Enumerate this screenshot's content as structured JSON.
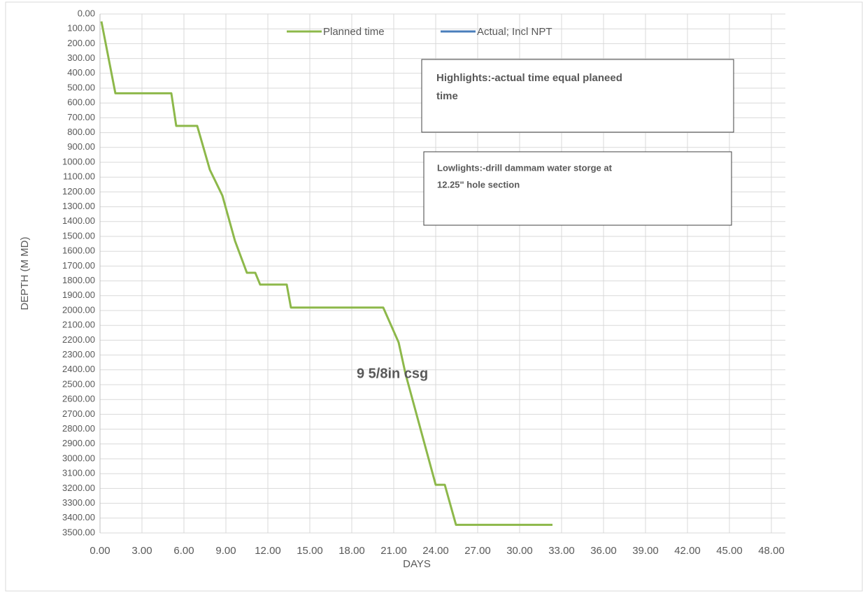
{
  "chart_data": {
    "type": "line",
    "x_label": "DAYS",
    "y_label": "DEPTH (M MD)",
    "x": [
      0.1,
      1.1,
      5.1,
      5.45,
      6.95,
      7.85,
      8.75,
      9.65,
      10.5,
      11.1,
      11.45,
      13.35,
      13.65,
      20.25,
      21.35,
      21.85,
      24.0,
      24.65,
      25.45,
      32.35
    ],
    "series": [
      {
        "name": "Planned time",
        "color": "#8db84a",
        "values": [
          50,
          535,
          535,
          755,
          755,
          1050,
          1225,
          1530,
          1745,
          1745,
          1825,
          1825,
          1980,
          1980,
          2215,
          2430,
          3175,
          3175,
          3445,
          3445
        ]
      },
      {
        "name": "Actual; Incl NPT",
        "color": "#4a7ebb",
        "values": [
          null,
          null,
          null,
          null,
          null,
          null,
          null,
          null,
          null,
          null,
          null,
          null,
          null,
          null,
          null,
          null,
          null,
          null,
          null,
          null
        ]
      }
    ],
    "xlim": [
      0,
      49
    ],
    "ylim": [
      0,
      3500
    ],
    "y_reversed": true,
    "grid": true,
    "legend": "top",
    "xticks": [
      {
        "value": 0,
        "label": "0.00"
      },
      {
        "value": 3,
        "label": "3.00"
      },
      {
        "value": 6,
        "label": "6.00"
      },
      {
        "value": 9,
        "label": "9.00"
      },
      {
        "value": 12,
        "label": "12.00"
      },
      {
        "value": 15,
        "label": "15.00"
      },
      {
        "value": 18,
        "label": "18.00"
      },
      {
        "value": 21,
        "label": "21.00"
      },
      {
        "value": 24,
        "label": "24.00"
      },
      {
        "value": 27,
        "label": "27.00"
      },
      {
        "value": 30,
        "label": "30.00"
      },
      {
        "value": 33,
        "label": "33.00"
      },
      {
        "value": 36,
        "label": "36.00"
      },
      {
        "value": 39,
        "label": "39.00"
      },
      {
        "value": 42,
        "label": "42.00"
      },
      {
        "value": 45,
        "label": "45.00"
      },
      {
        "value": 48,
        "label": "48.00"
      }
    ],
    "yticks": [
      {
        "value": 0,
        "label": "0.00"
      },
      {
        "value": 100,
        "label": "100.00"
      },
      {
        "value": 200,
        "label": "200.00"
      },
      {
        "value": 300,
        "label": "300.00"
      },
      {
        "value": 400,
        "label": "400.00"
      },
      {
        "value": 500,
        "label": "500.00"
      },
      {
        "value": 600,
        "label": "600.00"
      },
      {
        "value": 700,
        "label": "700.00"
      },
      {
        "value": 800,
        "label": "800.00"
      },
      {
        "value": 900,
        "label": "900.00"
      },
      {
        "value": 1000,
        "label": "1000.00"
      },
      {
        "value": 1100,
        "label": "1100.00"
      },
      {
        "value": 1200,
        "label": "1200.00"
      },
      {
        "value": 1300,
        "label": "1300.00"
      },
      {
        "value": 1400,
        "label": "1400.00"
      },
      {
        "value": 1500,
        "label": "1500.00"
      },
      {
        "value": 1600,
        "label": "1600.00"
      },
      {
        "value": 1700,
        "label": "1700.00"
      },
      {
        "value": 1800,
        "label": "1800.00"
      },
      {
        "value": 1900,
        "label": "1900.00"
      },
      {
        "value": 2000,
        "label": "2000.00"
      },
      {
        "value": 2100,
        "label": "2100.00"
      },
      {
        "value": 2200,
        "label": "2200.00"
      },
      {
        "value": 2300,
        "label": "2300.00"
      },
      {
        "value": 2400,
        "label": "2400.00"
      },
      {
        "value": 2500,
        "label": "2500.00"
      },
      {
        "value": 2600,
        "label": "2600.00"
      },
      {
        "value": 2700,
        "label": "2700.00"
      },
      {
        "value": 2800,
        "label": "2800.00"
      },
      {
        "value": 2900,
        "label": "2900.00"
      },
      {
        "value": 3000,
        "label": "3000.00"
      },
      {
        "value": 3100,
        "label": "3100.00"
      },
      {
        "value": 3200,
        "label": "3200.00"
      },
      {
        "value": 3300,
        "label": "3300.00"
      },
      {
        "value": 3400,
        "label": "3400.00"
      },
      {
        "value": 3500,
        "label": "3500.00"
      }
    ],
    "annotations": [
      {
        "text": "Highlights:-actual time equal planeed",
        "text2": "time",
        "color": "#00b050"
      },
      {
        "text": "Lowlights:-drill dammam water storge at",
        "text2": "12.25\" hole section",
        "color": "#ff0000"
      },
      {
        "text": "9 5/8in csg",
        "color": "#000000"
      }
    ]
  }
}
